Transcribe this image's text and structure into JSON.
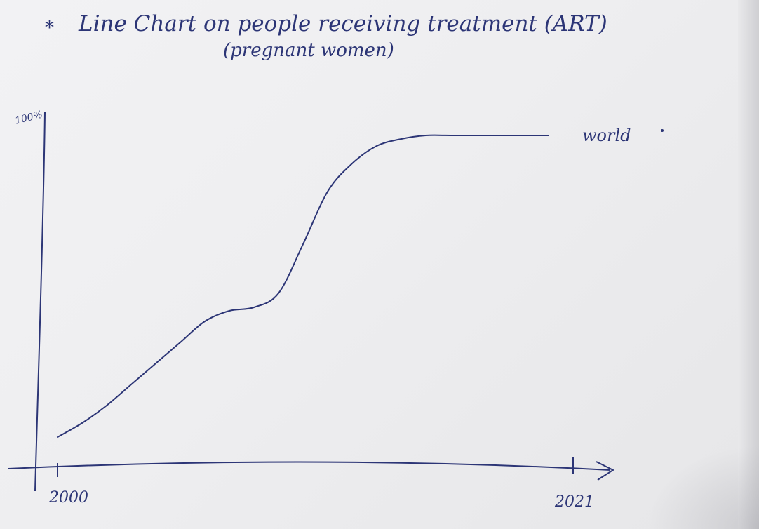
{
  "chart_data": {
    "type": "line",
    "title": "Line Chart on people receiving treatment (ART)",
    "subtitle": "(pregnant women)",
    "title_bullet": "*",
    "xlabel": "",
    "ylabel": "",
    "x_tick_labels": [
      "2000",
      "2021"
    ],
    "y_tick_labels": [
      "100%"
    ],
    "xlim": [
      2000,
      2021
    ],
    "ylim": [
      0,
      100
    ],
    "grid": false,
    "series": [
      {
        "name": "world",
        "label_position": "right end of line",
        "x": [
          2000,
          2001,
          2002,
          2003,
          2004,
          2005,
          2006,
          2007,
          2008,
          2009,
          2010,
          2011,
          2012,
          2013,
          2014,
          2015,
          2016,
          2017,
          2018,
          2019,
          2020
        ],
        "values": [
          9,
          13,
          18,
          24,
          30,
          36,
          42,
          45,
          46,
          50,
          64,
          79,
          87,
          92,
          94,
          95,
          95,
          95,
          95,
          95,
          95
        ]
      }
    ],
    "colors": {
      "ink": "#2c3576",
      "paper": "#f0f0f2"
    }
  }
}
